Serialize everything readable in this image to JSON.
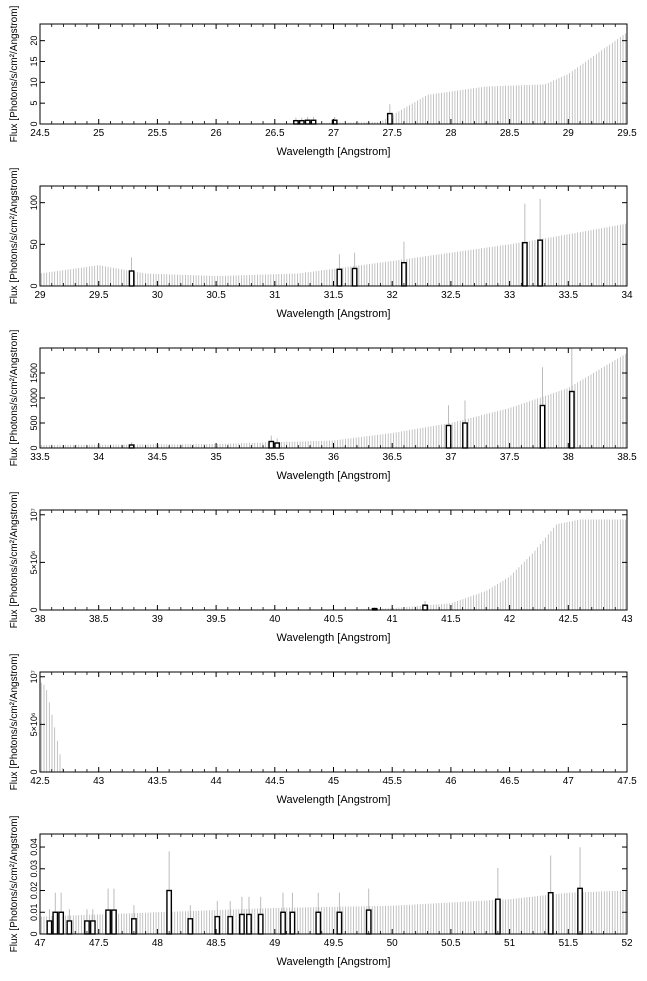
{
  "colors": {
    "spectrum": "#b4b4b4",
    "line_outline": "#000000",
    "axis": "#000000",
    "background": "#ffffff"
  },
  "chart_data": [
    {
      "type": "bar",
      "xlabel": "Wavelength [Angstrom]",
      "ylabel": "Flux [Photons/s/cm²/Angstrom]",
      "xlim": [
        24.5,
        29.5
      ],
      "ylim": [
        0,
        24
      ],
      "xticks": [
        "24.5",
        "25",
        "25.5",
        "26",
        "26.5",
        "27",
        "27.5",
        "28",
        "28.5",
        "29",
        "29.5"
      ],
      "yticks": [
        {
          "v": 0,
          "label": "0"
        },
        {
          "v": 5,
          "label": "5"
        },
        {
          "v": 10,
          "label": "10"
        },
        {
          "v": 15,
          "label": "15"
        },
        {
          "v": 20,
          "label": "20"
        }
      ],
      "continuum": {
        "x": [
          24.5,
          26.5,
          27.4,
          27.8,
          28.3,
          28.8,
          29.0,
          29.2,
          29.5
        ],
        "y": [
          0,
          0,
          0.5,
          7,
          9,
          9.5,
          12,
          16,
          22
        ]
      },
      "lines": [
        {
          "x": 26.68,
          "value": 0.8
        },
        {
          "x": 26.73,
          "value": 0.8
        },
        {
          "x": 26.78,
          "value": 0.9
        },
        {
          "x": 26.83,
          "value": 0.9
        },
        {
          "x": 27.01,
          "value": 0.9
        },
        {
          "x": 27.48,
          "value": 2.5
        }
      ]
    },
    {
      "type": "bar",
      "xlabel": "Wavelength [Angstrom]",
      "ylabel": "Flux [Photons/s/cm²/Angstrom]",
      "xlim": [
        29,
        34
      ],
      "ylim": [
        0,
        120
      ],
      "xticks": [
        "29",
        "29.5",
        "30",
        "30.5",
        "31",
        "31.5",
        "32",
        "32.5",
        "33",
        "33.5",
        "34"
      ],
      "yticks": [
        {
          "v": 0,
          "label": "0"
        },
        {
          "v": 50,
          "label": "50"
        },
        {
          "v": 100,
          "label": "100"
        }
      ],
      "continuum": {
        "x": [
          29,
          29.5,
          29.9,
          30.5,
          31.2,
          32,
          32.5,
          33,
          33.5,
          34
        ],
        "y": [
          15,
          25,
          15,
          12,
          15,
          30,
          40,
          50,
          62,
          75
        ]
      },
      "lines": [
        {
          "x": 29.78,
          "value": 18
        },
        {
          "x": 31.55,
          "value": 20
        },
        {
          "x": 31.68,
          "value": 21
        },
        {
          "x": 32.1,
          "value": 28
        },
        {
          "x": 33.13,
          "value": 52
        },
        {
          "x": 33.26,
          "value": 55
        }
      ]
    },
    {
      "type": "bar",
      "xlabel": "Wavelength [Angstrom]",
      "ylabel": "Flux [Photons/s/cm²/Angstrom]",
      "xlim": [
        33.5,
        38.5
      ],
      "ylim": [
        0,
        2000
      ],
      "xticks": [
        "33.5",
        "34",
        "34.5",
        "35",
        "35.5",
        "36",
        "36.5",
        "37",
        "37.5",
        "38",
        "38.5"
      ],
      "yticks": [
        {
          "v": 0,
          "label": "0"
        },
        {
          "v": 500,
          "label": "500"
        },
        {
          "v": 1000,
          "label": "1000"
        },
        {
          "v": 1500,
          "label": "1500"
        }
      ],
      "continuum": {
        "x": [
          33.5,
          35,
          36,
          36.5,
          37,
          37.5,
          38,
          38.5
        ],
        "y": [
          60,
          80,
          150,
          300,
          500,
          800,
          1200,
          1900
        ]
      },
      "lines": [
        {
          "x": 34.28,
          "value": 60
        },
        {
          "x": 35.47,
          "value": 130
        },
        {
          "x": 35.52,
          "value": 100
        },
        {
          "x": 36.98,
          "value": 450
        },
        {
          "x": 37.12,
          "value": 500
        },
        {
          "x": 37.78,
          "value": 850
        },
        {
          "x": 38.03,
          "value": 1130
        }
      ]
    },
    {
      "type": "bar",
      "xlabel": "Wavelength [Angstrom]",
      "ylabel": "Flux [Photons/s/cm²/Angstrom]",
      "xlim": [
        38,
        43
      ],
      "ylim": [
        0,
        10500000
      ],
      "xticks": [
        "38",
        "38.5",
        "39",
        "39.5",
        "40",
        "40.5",
        "41",
        "41.5",
        "42",
        "42.5",
        "43"
      ],
      "yticks": [
        {
          "v": 0,
          "label": "0"
        },
        {
          "v": 5000000,
          "label": "5×10⁶"
        },
        {
          "v": 10000000,
          "label": "10⁷"
        }
      ],
      "continuum": {
        "x": [
          38,
          40.5,
          41,
          41.5,
          41.8,
          42,
          42.2,
          42.4,
          42.6
        ],
        "y": [
          0,
          0,
          200000,
          700000,
          2000000,
          3500000,
          6000000,
          9000000,
          9500000
        ]
      },
      "lines": [
        {
          "x": 40.85,
          "value": 150000
        },
        {
          "x": 41.28,
          "value": 500000
        }
      ]
    },
    {
      "type": "bar",
      "xlabel": "Wavelength [Angstrom]",
      "ylabel": "Flux [Photons/s/cm²/Angstrom]",
      "xlim": [
        42.5,
        47.5
      ],
      "ylim": [
        0,
        10500000
      ],
      "xticks": [
        "42.5",
        "43",
        "43.5",
        "44",
        "44.5",
        "45",
        "45.5",
        "46",
        "46.5",
        "47",
        "47.5"
      ],
      "yticks": [
        {
          "v": 0,
          "label": "0"
        },
        {
          "v": 5000000,
          "label": "5×10⁶"
        },
        {
          "v": 10000000,
          "label": "10⁷"
        }
      ],
      "continuum": {
        "x": [
          42.5,
          42.55,
          42.62,
          42.7,
          47.5
        ],
        "y": [
          9500000,
          9000000,
          5000000,
          0,
          0
        ]
      },
      "lines": []
    },
    {
      "type": "bar",
      "xlabel": "Wavelength [Angstrom]",
      "ylabel": "Flux [Photons/s/cm²/Angstrom]",
      "xlim": [
        47,
        52
      ],
      "ylim": [
        0,
        0.046
      ],
      "xticks": [
        "47",
        "47.5",
        "48",
        "48.5",
        "49",
        "49.5",
        "50",
        "50.5",
        "51",
        "51.5",
        "52"
      ],
      "yticks": [
        {
          "v": 0,
          "label": "0"
        },
        {
          "v": 0.01,
          "label": "0.01"
        },
        {
          "v": 0.02,
          "label": "0.02"
        },
        {
          "v": 0.03,
          "label": "0.03"
        },
        {
          "v": 0.04,
          "label": "0.04"
        }
      ],
      "continuum": {
        "x": [
          47,
          48,
          49,
          50,
          51,
          51.5,
          52
        ],
        "y": [
          0.008,
          0.01,
          0.012,
          0.013,
          0.016,
          0.019,
          0.02
        ]
      },
      "lines": [
        {
          "x": 47.08,
          "value": 0.006
        },
        {
          "x": 47.13,
          "value": 0.01
        },
        {
          "x": 47.18,
          "value": 0.01
        },
        {
          "x": 47.25,
          "value": 0.006
        },
        {
          "x": 47.4,
          "value": 0.006
        },
        {
          "x": 47.45,
          "value": 0.006
        },
        {
          "x": 47.58,
          "value": 0.011
        },
        {
          "x": 47.63,
          "value": 0.011
        },
        {
          "x": 47.8,
          "value": 0.007
        },
        {
          "x": 48.1,
          "value": 0.02
        },
        {
          "x": 48.28,
          "value": 0.007
        },
        {
          "x": 48.51,
          "value": 0.008
        },
        {
          "x": 48.62,
          "value": 0.008
        },
        {
          "x": 48.72,
          "value": 0.009
        },
        {
          "x": 48.78,
          "value": 0.009
        },
        {
          "x": 48.88,
          "value": 0.009
        },
        {
          "x": 49.07,
          "value": 0.01
        },
        {
          "x": 49.15,
          "value": 0.01
        },
        {
          "x": 49.37,
          "value": 0.01
        },
        {
          "x": 49.55,
          "value": 0.01
        },
        {
          "x": 49.8,
          "value": 0.011
        },
        {
          "x": 50.9,
          "value": 0.016
        },
        {
          "x": 51.35,
          "value": 0.019
        },
        {
          "x": 51.6,
          "value": 0.021
        }
      ]
    }
  ]
}
